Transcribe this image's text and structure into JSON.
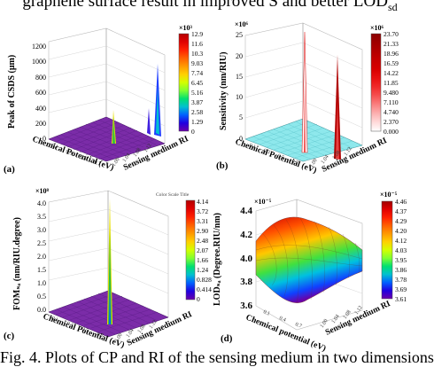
{
  "header_text": "graphene surface result in improved S and better LOD",
  "header_subscript": "sd",
  "caption": "Fig. 4. Plots of CP and RI of the sensing medium in two dimensions",
  "panels": {
    "a": {
      "label": "(a)",
      "zlabel": "Peak of CSDS (μm)",
      "xlabel": "Chemical Potential (eV)",
      "ylabel": "Sensing medium RI",
      "zticks": [
        "1200",
        "1000",
        "800",
        "600",
        "400",
        "200",
        "0"
      ],
      "xticks": [
        "0.1",
        "0.2",
        "0.3",
        "0.4",
        "0.5",
        "0.6",
        "0.7",
        "0.8",
        "0.9",
        "1.0"
      ],
      "yticks": [
        "1.00",
        "1.02",
        "1.04",
        "1.06",
        "1.08",
        "1.10",
        "1.12",
        "1.14"
      ],
      "colorbar_exponent": "×10³",
      "colorbar_ticks": [
        "12.9",
        "11.6",
        "10.3",
        "9.03",
        "7.74",
        "6.45",
        "5.16",
        "3.87",
        "2.58",
        "1.29",
        "0"
      ],
      "colorbar_colors": [
        "#b30000",
        "#e00000",
        "#ff2000",
        "#ff6000",
        "#ff9900",
        "#ffd000",
        "#d4ff00",
        "#80ff30",
        "#00e070",
        "#00c0d0",
        "#0060ff",
        "#2000e0",
        "#6a00a8"
      ]
    },
    "b": {
      "label": "(b)",
      "zlabel": "Sensitivity (nm/RIU)",
      "xlabel": "Chemical Potential (eV)",
      "ylabel": "Sensing medium RI",
      "z_exponent": "×10⁶",
      "zticks": [
        "25",
        "20",
        "15",
        "10",
        "5",
        "0"
      ],
      "xticks": [
        "0.1",
        "0.2",
        "0.3",
        "0.4",
        "0.5",
        "0.6",
        "0.7",
        "0.8",
        "0.9",
        "1.0"
      ],
      "yticks": [
        "1.00",
        "1.02",
        "1.04",
        "1.06",
        "1.08",
        "1.10",
        "1.12",
        "1.14"
      ],
      "colorbar_exponent": "×10⁶",
      "colorbar_ticks": [
        "23.70",
        "21.33",
        "18.96",
        "16.59",
        "14.22",
        "11.85",
        "9.480",
        "7.110",
        "4.740",
        "2.370",
        "0.000"
      ],
      "colorbar_colors": [
        "#8b0000",
        "#a00000",
        "#b40000",
        "#c80000",
        "#d80000",
        "#e81010",
        "#f02a2a",
        "#f65050",
        "#fa8080",
        "#fcb0b0",
        "#ffdada",
        "#ffffff"
      ]
    },
    "c": {
      "label": "(c)",
      "zlabel": "FOMₛₐ (nm/RIU.degree)",
      "xlabel": "Chemical Potential (eV)",
      "ylabel": "Sensing medium RI",
      "z_exponent": "×10⁸",
      "zticks": [
        "4.0",
        "3.5",
        "3.0",
        "2.5",
        "2.0",
        "1.5",
        "1.0",
        "0.5",
        "0.0"
      ],
      "xticks": [
        "0.1",
        "0.2",
        "0.3",
        "0.4",
        "0.5",
        "0.6",
        "0.7",
        "0.8",
        "0.9",
        "1.0"
      ],
      "yticks": [
        "1.00",
        "1.02",
        "1.04",
        "1.06",
        "1.08",
        "1.10",
        "1.12",
        "1.14"
      ],
      "colorbar_title": "Color Scale Title",
      "colorbar_ticks": [
        "4.14",
        "3.72",
        "3.31",
        "2.90",
        "2.48",
        "2.07",
        "1.66",
        "1.24",
        "0.828",
        "0.414",
        "0"
      ],
      "colorbar_colors": [
        "#b30000",
        "#e00000",
        "#ff2000",
        "#ff6000",
        "#ff9900",
        "#ffd000",
        "#d4ff00",
        "#80ff30",
        "#00e070",
        "#00c0d0",
        "#0060ff",
        "#2000e0",
        "#6a00a8"
      ]
    },
    "d": {
      "label": "(d)",
      "zlabel": "LODₛₐ (Degree.RIU/nm)",
      "xlabel": "Chemical potential (eV)",
      "ylabel": "Sensing medium RI",
      "z_exponent": "×10⁻⁵",
      "zticks": [
        "4.4",
        "4.2",
        "4.0",
        "3.8",
        "3.6"
      ],
      "xticks": [
        "0.1",
        "0.2",
        "0.3",
        "0.4",
        "0.5",
        "0.6",
        "0.7",
        "0.8",
        "0.9",
        "1.0"
      ],
      "yticks": [
        "1.00",
        "1.02",
        "1.04",
        "1.06",
        "1.08",
        "1.10",
        "1.12",
        "1.14"
      ],
      "colorbar_exponent": "×10⁻⁵",
      "colorbar_ticks": [
        "4.46",
        "4.37",
        "4.29",
        "4.20",
        "4.12",
        "4.03",
        "3.95",
        "3.86",
        "3.78",
        "3.69",
        "3.61"
      ],
      "colorbar_colors": [
        "#a00000",
        "#e00000",
        "#ff2000",
        "#ff6000",
        "#ff9900",
        "#ffd000",
        "#d4ff00",
        "#80ff30",
        "#00e070",
        "#00c0d0",
        "#0060ff",
        "#2000e0",
        "#6a00a8"
      ]
    }
  }
}
